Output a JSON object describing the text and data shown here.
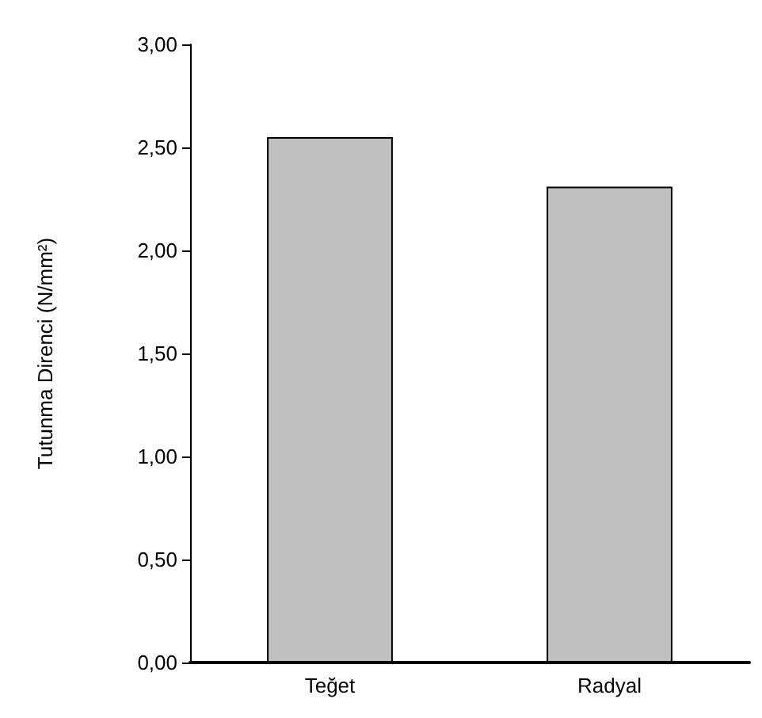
{
  "chart_data": {
    "type": "bar",
    "ylabel": "Tutunma Direnci (N/mm²)",
    "categories": [
      "Teğet",
      "Radyal"
    ],
    "values": [
      2.55,
      2.31
    ],
    "color": "#c0c0c0",
    "ylim": [
      0,
      3
    ],
    "yticks": [
      {
        "value": 0,
        "label": "0,00"
      },
      {
        "value": 0.5,
        "label": "0,50"
      },
      {
        "value": 1,
        "label": "1,00"
      },
      {
        "value": 1.5,
        "label": "1,50"
      },
      {
        "value": 2,
        "label": "2,00"
      },
      {
        "value": 2.5,
        "label": "2,50"
      },
      {
        "value": 3,
        "label": "3,00"
      }
    ],
    "grid": false
  }
}
